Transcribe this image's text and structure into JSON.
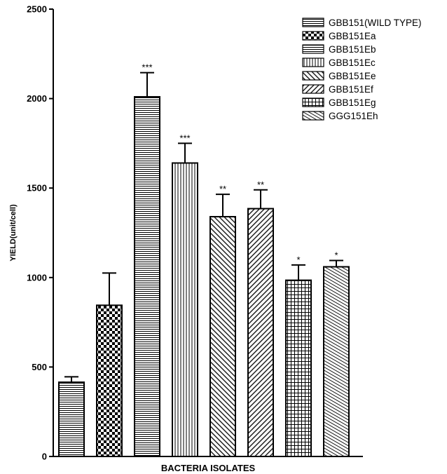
{
  "chart_data": {
    "type": "bar",
    "title": "",
    "xlabel": "BACTERIA ISOLATES",
    "ylabel": "YIELD(unit/cell)",
    "ylim": [
      0,
      2500
    ],
    "yticks": [
      "0",
      "500",
      "1000",
      "1500",
      "2000",
      "2500"
    ],
    "legend_position": "top-right",
    "categories": [
      "GBB151(WILD TYPE)",
      "GBB151Ea",
      "GBB151Eb",
      "GBB151Ec",
      "GBB151Ee",
      "GBB151Ef",
      "GBB151Eg",
      "GGG151Eh"
    ],
    "values": [
      415,
      845,
      2010,
      1640,
      1340,
      1385,
      985,
      1060
    ],
    "errors": [
      30,
      180,
      135,
      110,
      125,
      105,
      85,
      35
    ],
    "significance": [
      "",
      "",
      "***",
      "***",
      "**",
      "**",
      "*",
      "*"
    ],
    "patterns": [
      "wild",
      "check",
      "hlines",
      "vlines",
      "diag",
      "diag2",
      "grid",
      "diag3"
    ]
  }
}
